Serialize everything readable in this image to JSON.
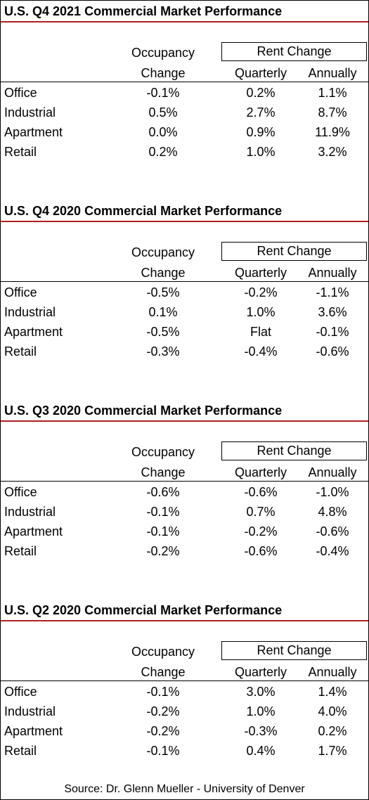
{
  "headers": {
    "occupancy_line1": "Occupancy",
    "occupancy_line2": "Change",
    "rent_change": "Rent Change",
    "quarterly": "Quarterly",
    "annually": "Annually"
  },
  "sections": [
    {
      "title": "U.S. Q4 2021 Commercial Market Performance",
      "rows": [
        {
          "label": "Office",
          "occupancy": "-0.1%",
          "quarterly": "0.2%",
          "annually": "1.1%"
        },
        {
          "label": "Industrial",
          "occupancy": "0.5%",
          "quarterly": "2.7%",
          "annually": "8.7%"
        },
        {
          "label": "Apartment",
          "occupancy": "0.0%",
          "quarterly": "0.9%",
          "annually": "11.9%"
        },
        {
          "label": "Retail",
          "occupancy": "0.2%",
          "quarterly": "1.0%",
          "annually": "3.2%"
        }
      ]
    },
    {
      "title": "U.S. Q4 2020 Commercial Market Performance",
      "rows": [
        {
          "label": "Office",
          "occupancy": "-0.5%",
          "quarterly": "-0.2%",
          "annually": "-1.1%"
        },
        {
          "label": "Industrial",
          "occupancy": "0.1%",
          "quarterly": "1.0%",
          "annually": "3.6%"
        },
        {
          "label": "Apartment",
          "occupancy": "-0.5%",
          "quarterly": "Flat",
          "annually": "-0.1%"
        },
        {
          "label": "Retail",
          "occupancy": "-0.3%",
          "quarterly": "-0.4%",
          "annually": "-0.6%"
        }
      ]
    },
    {
      "title": "U.S. Q3 2020 Commercial Market Performance",
      "rows": [
        {
          "label": "Office",
          "occupancy": "-0.6%",
          "quarterly": "-0.6%",
          "annually": "-1.0%"
        },
        {
          "label": "Industrial",
          "occupancy": "-0.1%",
          "quarterly": "0.7%",
          "annually": "4.8%"
        },
        {
          "label": "Apartment",
          "occupancy": "-0.1%",
          "quarterly": "-0.2%",
          "annually": "-0.6%"
        },
        {
          "label": "Retail",
          "occupancy": "-0.2%",
          "quarterly": "-0.6%",
          "annually": "-0.4%"
        }
      ]
    },
    {
      "title": "U.S. Q2 2020 Commercial Market Performance",
      "rows": [
        {
          "label": "Office",
          "occupancy": "-0.1%",
          "quarterly": "3.0%",
          "annually": "1.4%"
        },
        {
          "label": "Industrial",
          "occupancy": "-0.2%",
          "quarterly": "1.0%",
          "annually": "4.0%"
        },
        {
          "label": "Apartment",
          "occupancy": "-0.2%",
          "quarterly": "-0.3%",
          "annually": "0.2%"
        },
        {
          "label": "Retail",
          "occupancy": "-0.1%",
          "quarterly": "0.4%",
          "annually": "1.7%"
        }
      ]
    }
  ],
  "source": "Source: Dr. Glenn Mueller - University of Denver",
  "colors": {
    "title_rule": "#b01e22",
    "border": "#000000",
    "background": "#ffffff"
  }
}
